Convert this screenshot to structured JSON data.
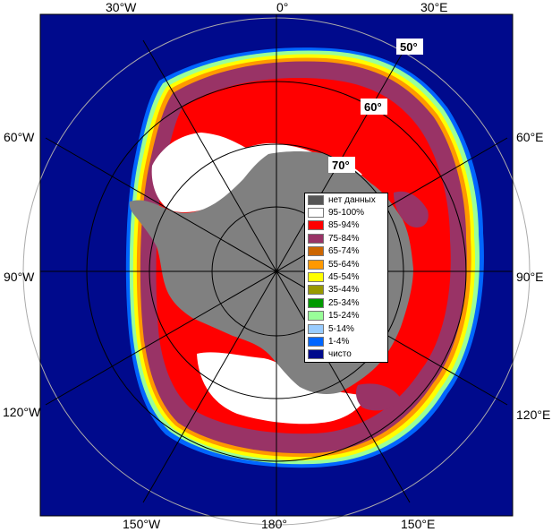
{
  "map": {
    "longitude_labels": [
      "0°",
      "30°E",
      "60°E",
      "90°E",
      "120°E",
      "150°E",
      "180°",
      "150°W",
      "120°W",
      "90°W",
      "60°W",
      "30°W"
    ],
    "latitude_labels": [
      "50°",
      "60°",
      "70°"
    ],
    "colors": {
      "ocean": "#000a8c",
      "land_no_data": "#808080",
      "graticule": "#000000"
    }
  },
  "legend": {
    "items": [
      {
        "label": "нет данных",
        "color": "#555555"
      },
      {
        "label": "95-100%",
        "color": "#ffffff"
      },
      {
        "label": "85-94%",
        "color": "#ff0000"
      },
      {
        "label": "75-84%",
        "color": "#993366"
      },
      {
        "label": "65-74%",
        "color": "#cc6600"
      },
      {
        "label": "55-64%",
        "color": "#ff9900"
      },
      {
        "label": "45-54%",
        "color": "#ffff00"
      },
      {
        "label": "35-44%",
        "color": "#999900"
      },
      {
        "label": "25-34%",
        "color": "#009900"
      },
      {
        "label": "15-24%",
        "color": "#99ff99"
      },
      {
        "label": "5-14%",
        "color": "#99ccff"
      },
      {
        "label": "1-4%",
        "color": "#0066ff"
      },
      {
        "label": "чисто",
        "color": "#000a8c"
      }
    ]
  }
}
